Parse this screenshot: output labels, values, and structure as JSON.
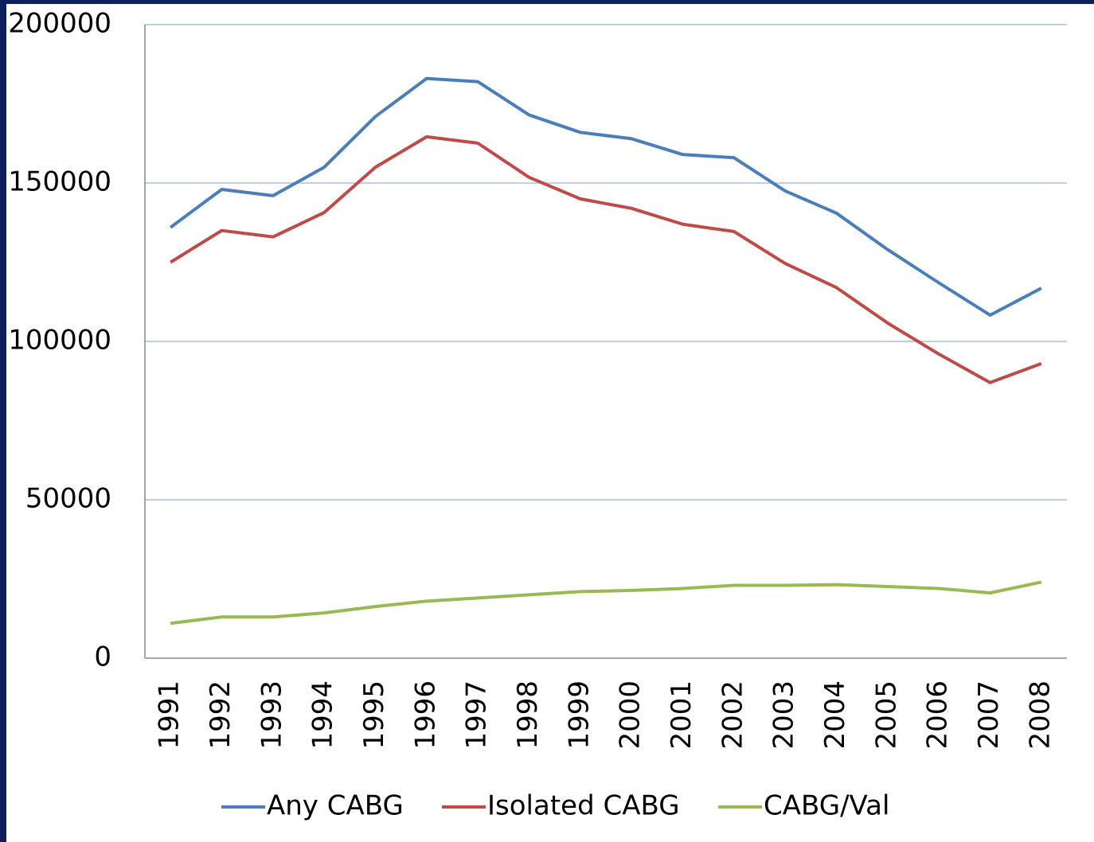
{
  "chart_data": {
    "type": "line",
    "categories": [
      "1991",
      "1992",
      "1993",
      "1994",
      "1995",
      "1996",
      "1997",
      "1998",
      "1999",
      "2000",
      "2001",
      "2002",
      "2003",
      "2004",
      "2005",
      "2006",
      "2007",
      "2008"
    ],
    "series": [
      {
        "name": "Any CABG",
        "color": "#4a7ebb",
        "values": [
          136000,
          148000,
          146000,
          155000,
          171000,
          183000,
          182000,
          171500,
          166000,
          164000,
          159000,
          158000,
          147500,
          140500,
          129000,
          118500,
          108300,
          116800
        ]
      },
      {
        "name": "Isolated CABG",
        "color": "#be4b48",
        "values": [
          125000,
          135000,
          133000,
          140700,
          155000,
          164600,
          162600,
          151800,
          145000,
          142000,
          137000,
          134700,
          124600,
          117000,
          105800,
          96000,
          87000,
          93000
        ]
      },
      {
        "name": "CABG/Val",
        "color": "#98b954",
        "values": [
          11000,
          13000,
          13000,
          14300,
          16300,
          18000,
          19000,
          20000,
          21000,
          21400,
          22000,
          23000,
          23000,
          23200,
          22600,
          22000,
          20600,
          24000
        ]
      }
    ],
    "ylim": [
      0,
      200000
    ],
    "yticks": [
      0,
      50000,
      100000,
      150000,
      200000
    ],
    "grid": true,
    "legend": "bottom"
  }
}
